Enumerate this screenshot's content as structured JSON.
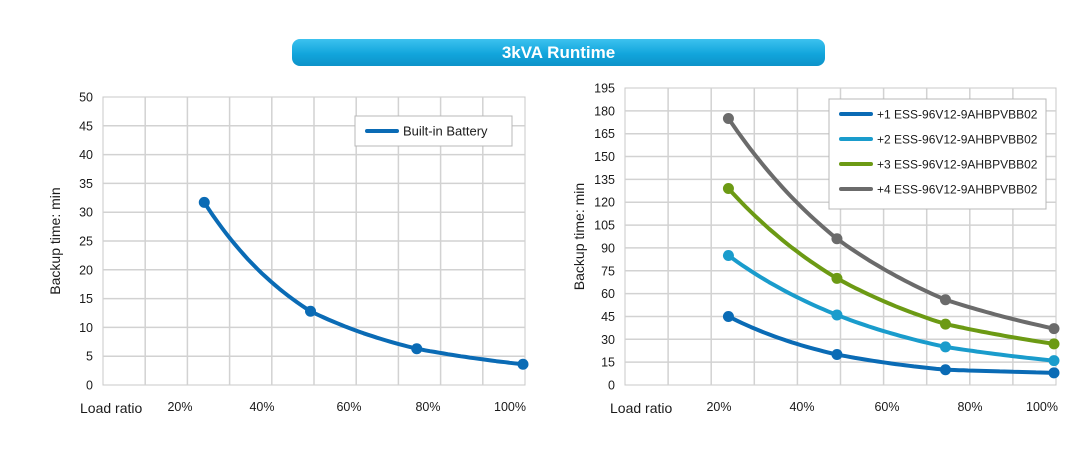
{
  "title": "3kVA Runtime",
  "chart_data": [
    {
      "type": "line",
      "xlabel": "Load ratio",
      "ylabel": "Backup time: min",
      "x_ticks": [
        "20%",
        "40%",
        "60%",
        "80%",
        "100%"
      ],
      "y_ticks": [
        0,
        5,
        10,
        15,
        20,
        25,
        30,
        35,
        40,
        45,
        50
      ],
      "ylim": [
        0,
        50
      ],
      "grid": true,
      "legend_position": "top-right",
      "series": [
        {
          "name": "Built-in Battery",
          "color": "#0a6bb5",
          "x": [
            25,
            50,
            75,
            100
          ],
          "y": [
            31.7,
            12.8,
            6.3,
            3.6
          ]
        }
      ]
    },
    {
      "type": "line",
      "xlabel": "Load ratio",
      "ylabel": "Backup time: min",
      "x_ticks": [
        "20%",
        "40%",
        "60%",
        "80%",
        "100%"
      ],
      "y_ticks": [
        0,
        15,
        30,
        45,
        60,
        75,
        90,
        105,
        120,
        135,
        150,
        165,
        180,
        195
      ],
      "ylim": [
        0,
        195
      ],
      "grid": true,
      "legend_position": "top-right",
      "series": [
        {
          "name": "+1 ESS-96V12-9AHBPVBB02",
          "color": "#0a6bb5",
          "x": [
            25,
            50,
            75,
            100
          ],
          "y": [
            45,
            20,
            10,
            8
          ]
        },
        {
          "name": "+2 ESS-96V12-9AHBPVBB02",
          "color": "#1a9ccc",
          "x": [
            25,
            50,
            75,
            100
          ],
          "y": [
            85,
            46,
            25,
            16
          ]
        },
        {
          "name": "+3 ESS-96V12-9AHBPVBB02",
          "color": "#6c9a14",
          "x": [
            25,
            50,
            75,
            100
          ],
          "y": [
            129,
            70,
            40,
            27
          ]
        },
        {
          "name": "+4 ESS-96V12-9AHBPVBB02",
          "color": "#6b6b6b",
          "x": [
            25,
            50,
            75,
            100
          ],
          "y": [
            175,
            96,
            56,
            37
          ]
        }
      ]
    }
  ]
}
